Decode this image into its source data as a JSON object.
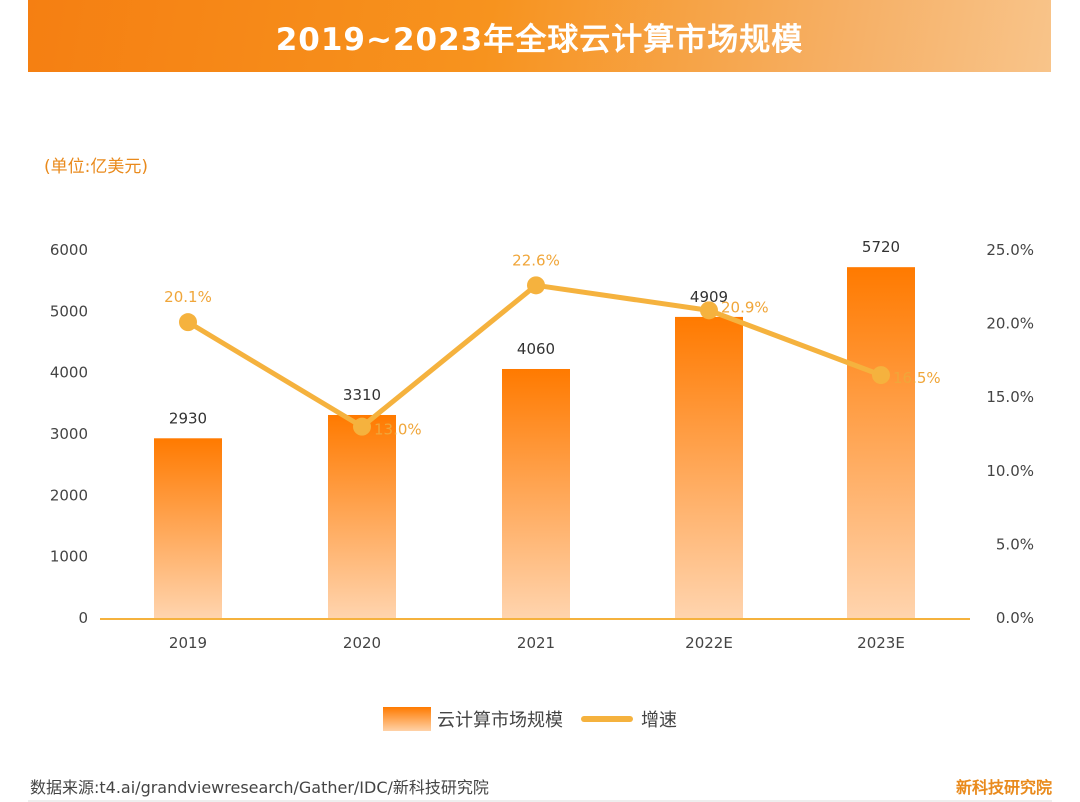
{
  "title": "2019~2023年全球云计算市场规模",
  "unit": "(单位:亿美元)",
  "source": "数据来源:t4.ai/grandviewresearch/Gather/IDC/新科技研究院",
  "brand": "新科技研究院",
  "colors": {
    "bar_top": "#ff7a00",
    "bar_bottom": "#ffd4ae",
    "line": "#f5b23e",
    "label_growth": "#f0a63a",
    "accent": "#e98a1c"
  },
  "chart_data": {
    "type": "bar+line",
    "title": "2019~2023年全球云计算市场规模",
    "categories": [
      "2019",
      "2020",
      "2021",
      "2022E",
      "2023E"
    ],
    "series": [
      {
        "name": "云计算市场规模",
        "type": "bar",
        "axis": "left",
        "values": [
          2930,
          3310,
          4060,
          4909,
          5720
        ],
        "labels": [
          "2930",
          "3310",
          "4060",
          "4909",
          "5720"
        ]
      },
      {
        "name": "增速",
        "type": "line",
        "axis": "right",
        "values": [
          20.1,
          13.0,
          22.6,
          20.9,
          16.5
        ],
        "labels": [
          "20.1%",
          "13.0%",
          "22.6%",
          "20.9%",
          "16.5%"
        ]
      }
    ],
    "y_left": {
      "range": [
        0,
        6000
      ],
      "ticks": [
        "0",
        "1000",
        "2000",
        "3000",
        "4000",
        "5000",
        "6000"
      ]
    },
    "y_right": {
      "range": [
        0,
        25
      ],
      "ticks": [
        "0.0%",
        "5.0%",
        "10.0%",
        "15.0%",
        "20.0%",
        "25.0%"
      ]
    },
    "grid": false,
    "legend": "bottom-center"
  }
}
